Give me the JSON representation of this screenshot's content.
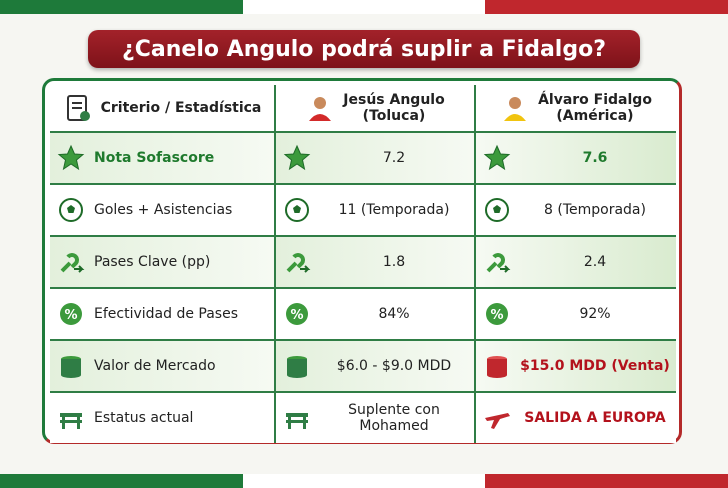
{
  "title": "¿Canelo Angulo podrá suplir a Fidalgo?",
  "table": {
    "header": {
      "criterion": "Criterio / Estadística",
      "player1": {
        "name": "Jesús Angulo",
        "team": "(Toluca)"
      },
      "player2": {
        "name": "Álvaro Fidalgo",
        "team": "(América)"
      }
    },
    "rows": [
      [
        "Nota Sofascore",
        "7.2",
        "7.6"
      ],
      [
        "Goles + Asistencias",
        "11 (Temporada)",
        "8 (Temporada)"
      ],
      [
        "Pases Clave (pp)",
        "1.8",
        "2.4"
      ],
      [
        "Efectividad de Pases",
        "84%",
        "92%"
      ],
      [
        "Valor de Mercado",
        "$6.0 - $9.0 MDD",
        "$15.0 MDD (Venta)"
      ],
      [
        "Estatus actual",
        "Suplente con Mohamed",
        "SALIDA A EUROPA"
      ]
    ]
  }
}
